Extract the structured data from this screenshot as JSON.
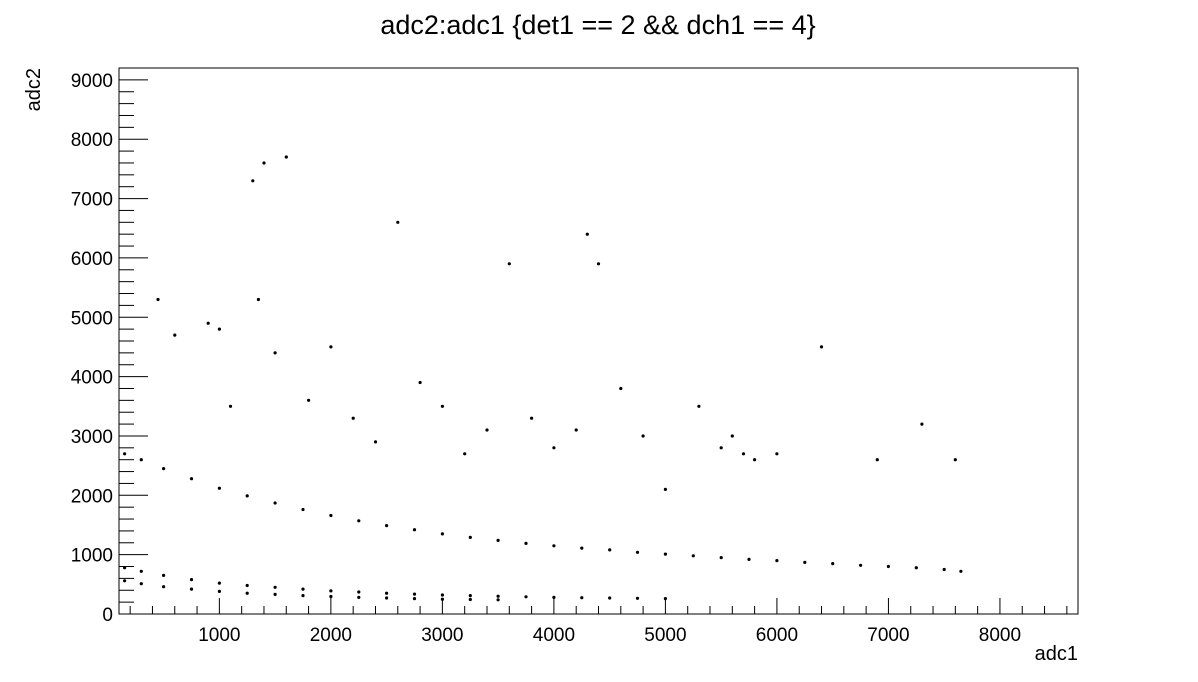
{
  "chart_data": {
    "type": "scatter",
    "title": "adc2:adc1 {det1 == 2 && dch1 == 4}",
    "xlabel": "adc1",
    "ylabel": "adc2",
    "xlim": [
      100,
      8700
    ],
    "ylim": [
      0,
      9200
    ],
    "x_ticks": [
      1000,
      2000,
      3000,
      4000,
      5000,
      6000,
      7000,
      8000
    ],
    "y_ticks": [
      0,
      1000,
      2000,
      3000,
      4000,
      5000,
      6000,
      7000,
      8000,
      9000
    ],
    "x_tick_labels": [
      "1000",
      "2000",
      "3000",
      "4000",
      "5000",
      "6000",
      "7000",
      "8000"
    ],
    "y_tick_labels": [
      "0",
      "1000",
      "2000",
      "3000",
      "4000",
      "5000",
      "6000",
      "7000",
      "8000",
      "9000"
    ],
    "grid": false,
    "legend": "none",
    "marker_color": "#000000",
    "series": [
      {
        "x": [
          150,
          300,
          500,
          750,
          1000,
          1250,
          1500,
          1750,
          2000,
          2250,
          2500,
          2750,
          3000,
          3250,
          3500,
          3750,
          4000,
          4250,
          4500,
          4750,
          5000,
          5250,
          5500,
          5750,
          6000,
          6250,
          6500,
          6750,
          7000,
          7250,
          7500,
          7650
        ],
        "y": [
          2700,
          2600,
          2450,
          2280,
          2120,
          1990,
          1870,
          1760,
          1660,
          1570,
          1490,
          1420,
          1350,
          1290,
          1240,
          1190,
          1150,
          1110,
          1080,
          1040,
          1010,
          980,
          950,
          920,
          900,
          870,
          850,
          820,
          800,
          780,
          750,
          720
        ]
      },
      {
        "x": [
          150,
          300,
          500,
          750,
          1000,
          1250,
          1500,
          1750,
          2000,
          2250,
          2500,
          2750,
          3000,
          3250,
          3500,
          3750,
          4000,
          4250,
          4500,
          4750,
          5000
        ],
        "y": [
          780,
          720,
          650,
          580,
          520,
          480,
          450,
          420,
          390,
          370,
          350,
          335,
          320,
          310,
          300,
          290,
          280,
          275,
          270,
          265,
          260
        ]
      },
      {
        "x": [
          150,
          300,
          500,
          750,
          1000,
          1250,
          1500,
          1750,
          2000,
          2250,
          2500,
          2750,
          3000,
          3250,
          3500
        ],
        "y": [
          560,
          510,
          460,
          420,
          380,
          350,
          330,
          310,
          295,
          280,
          270,
          260,
          250,
          245,
          240
        ]
      },
      {
        "x": [
          450,
          600,
          900,
          1000,
          1100,
          1300,
          1350,
          1400,
          1500,
          1600,
          1800,
          2000,
          2200,
          2400,
          2600,
          2800,
          3000,
          3200,
          3400,
          3600,
          3800,
          4000,
          4200,
          4300,
          4400,
          4600,
          4800,
          5000,
          5300,
          5500,
          5600,
          5700,
          5800,
          6000,
          6400,
          6900,
          7300,
          7600
        ],
        "y": [
          5300,
          4700,
          4900,
          4800,
          3500,
          7300,
          5300,
          7600,
          4400,
          7700,
          3600,
          4500,
          3300,
          2900,
          6600,
          3900,
          3500,
          2700,
          3100,
          5900,
          3300,
          2800,
          3100,
          6400,
          5900,
          3800,
          3000,
          2100,
          3500,
          2800,
          3000,
          2700,
          2600,
          2700,
          4500,
          2600,
          3200,
          2600
        ]
      }
    ]
  }
}
